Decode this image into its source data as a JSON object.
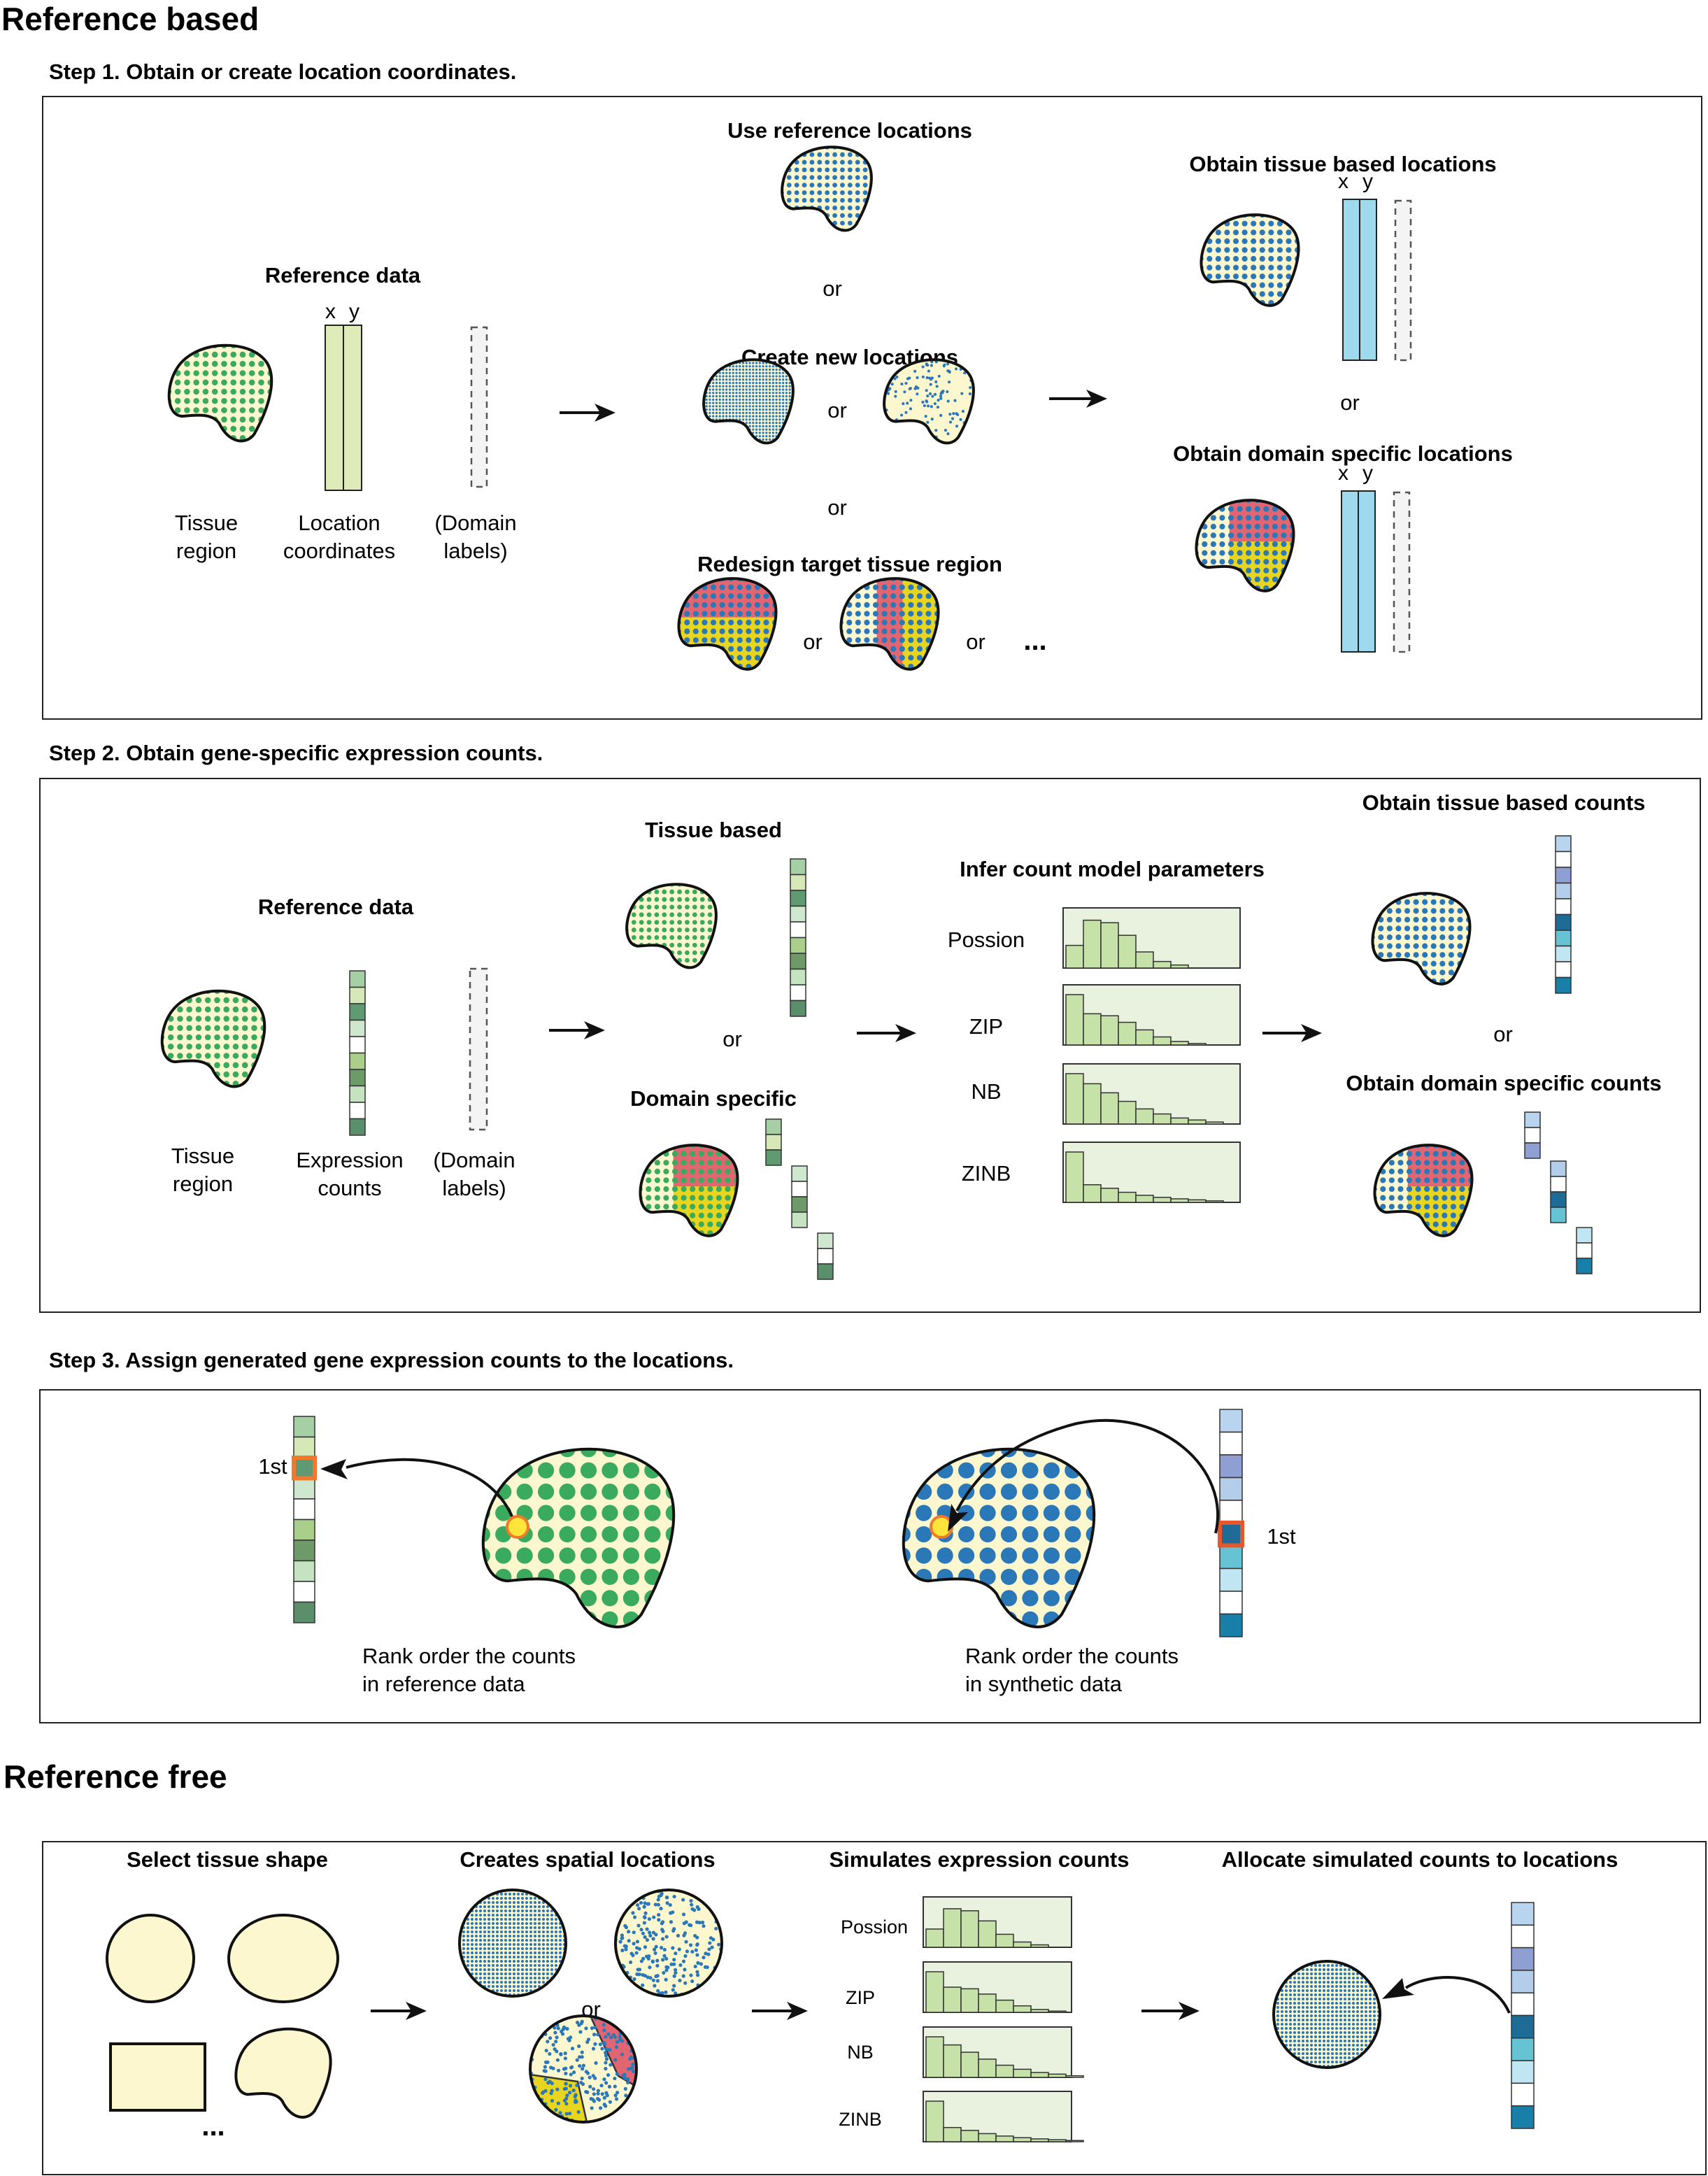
{
  "colors": {
    "green_dot": "#3aaa5e",
    "blue_dot": "#2b78b8",
    "tissue_fill": "#fcf7cf",
    "red_domain": "#e26672",
    "yellow_domain": "#e8d51f",
    "coord_green": "#dfebb8",
    "coord_blue": "#9fd9ee",
    "hist_bg": "#e9f2de",
    "hist_bar": "#c6e2a8",
    "highlight_orange": "#f07a2a",
    "highlight_yellow": "#ffe53a"
  },
  "ref_based": {
    "title": "Reference based",
    "step1": {
      "heading": "Step 1. Obtain or create location coordinates.",
      "reference_data": "Reference data",
      "x": "x",
      "y": "y",
      "tissue_line1": "Tissue",
      "tissue_line2": "region",
      "location_line1": "Location",
      "location_line2": "coordinates",
      "domain_line1": "(Domain",
      "domain_line2": "labels)",
      "use_reference": "Use reference locations",
      "create_new": "Create new locations",
      "redesign": "Redesign target tissue region",
      "obtain_tissue": "Obtain tissue based locations",
      "obtain_domain": "Obtain domain specific locations",
      "or": "or",
      "ellipsis": "..."
    },
    "step2": {
      "heading": "Step 2. Obtain gene-specific expression counts.",
      "reference_data": "Reference data",
      "tissue_line1": "Tissue",
      "tissue_line2": "region",
      "expr_line1": "Expression",
      "expr_line2": "counts",
      "domain_line1": "(Domain",
      "domain_line2": "labels)",
      "tissue_based": "Tissue based",
      "domain_specific": "Domain specific",
      "infer": "Infer count model parameters",
      "models": [
        "Possion",
        "ZIP",
        "NB",
        "ZINB"
      ],
      "obtain_tissue_counts": "Obtain tissue based counts",
      "obtain_domain_counts": "Obtain domain specific counts",
      "or": "or"
    },
    "step3": {
      "heading": "Step 3. Assign generated gene expression counts to the locations.",
      "first": "1st",
      "rank_ref_line1": "Rank order the counts",
      "rank_ref_line2": "in reference data",
      "rank_syn_line1": "Rank order the counts",
      "rank_syn_line2": "in synthetic data"
    }
  },
  "ref_free": {
    "title": "Reference free",
    "select_shape": "Select tissue shape",
    "creates_locations": "Creates spatial locations",
    "simulates_counts": "Simulates expression counts",
    "allocate": "Allocate simulated counts to locations",
    "models": [
      "Possion",
      "ZIP",
      "NB",
      "ZINB"
    ],
    "or": "or",
    "ellipsis": "..."
  }
}
